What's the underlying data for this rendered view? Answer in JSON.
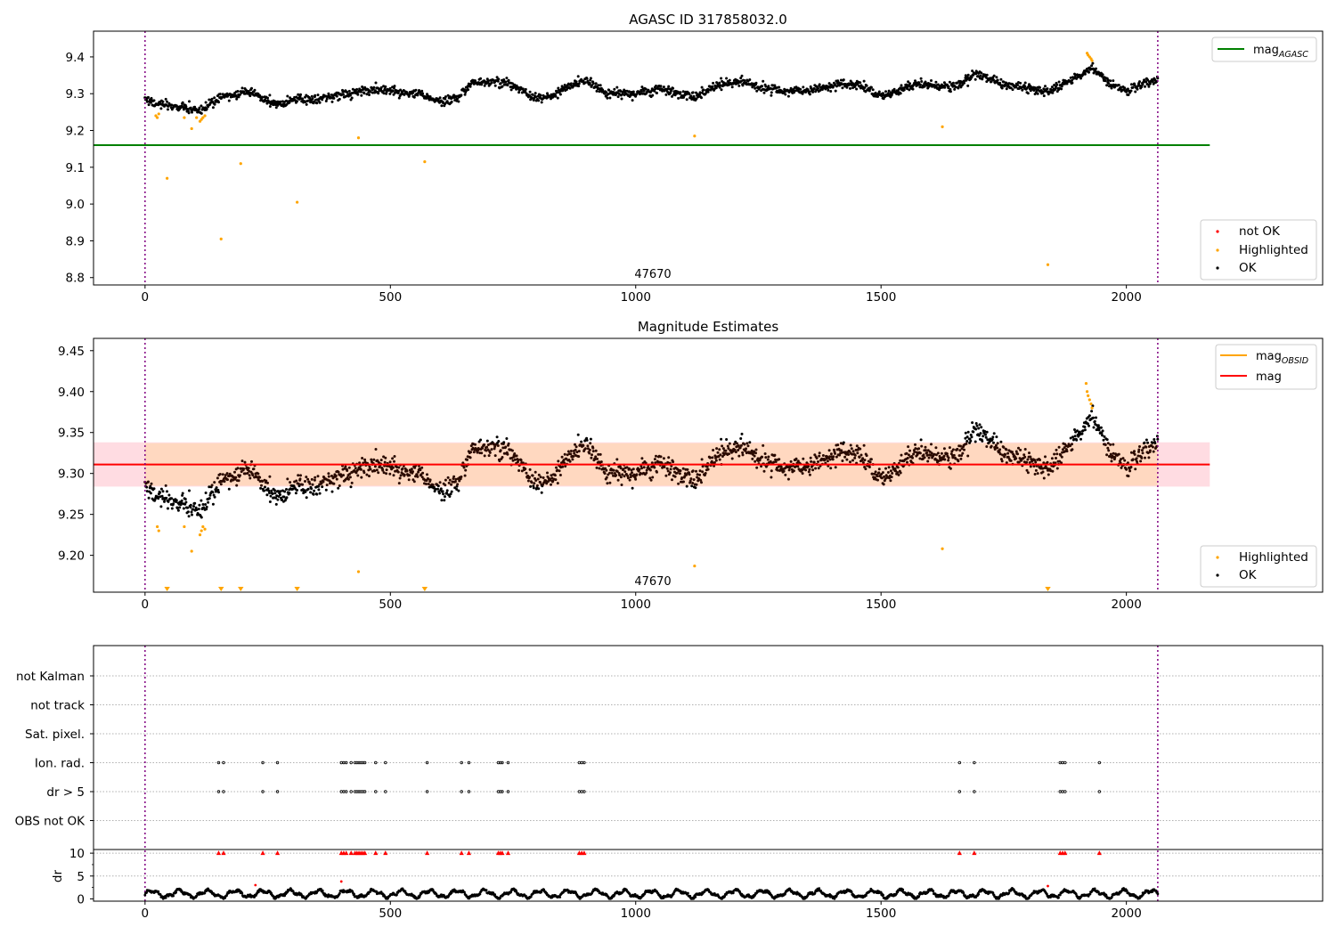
{
  "chart_data": [
    {
      "type": "scatter",
      "title": "AGASC ID 317858032.0",
      "xlim": [
        -105,
        2400
      ],
      "ylim": [
        8.78,
        9.47
      ],
      "x_ticks": [
        0,
        500,
        1000,
        1500,
        2000
      ],
      "y_ticks": [
        8.8,
        8.9,
        9.0,
        9.1,
        9.2,
        9.3,
        9.4
      ],
      "y_tick_labels": [
        "8.8",
        "8.9",
        "9.0",
        "9.1",
        "9.2",
        "9.3",
        "9.4"
      ],
      "obsid_annotation": {
        "text": "47670",
        "x": 1030,
        "y": 8.795
      },
      "vlines": [
        0,
        2064
      ],
      "hline": {
        "y": 9.16,
        "x_from": -105,
        "x_to": 2170,
        "color": "#008000"
      },
      "legend_upper": [
        {
          "label": "mag",
          "subscript": "AGASC",
          "color": "#008000",
          "kind": "line"
        }
      ],
      "legend_lower": [
        {
          "label": "not OK",
          "color": "#ff0000",
          "kind": "dot"
        },
        {
          "label": "Highlighted",
          "color": "#ffa500",
          "kind": "dot"
        },
        {
          "label": "OK",
          "color": "#000000",
          "kind": "dot"
        }
      ],
      "highlighted_points": [
        [
          22,
          9.24
        ],
        [
          25,
          9.235
        ],
        [
          28,
          9.245
        ],
        [
          45,
          9.07
        ],
        [
          80,
          9.235
        ],
        [
          95,
          9.205
        ],
        [
          105,
          9.235
        ],
        [
          112,
          9.225
        ],
        [
          115,
          9.23
        ],
        [
          118,
          9.235
        ],
        [
          122,
          9.24
        ],
        [
          155,
          8.905
        ],
        [
          195,
          9.11
        ],
        [
          310,
          9.005
        ],
        [
          435,
          9.18
        ],
        [
          570,
          9.115
        ],
        [
          1120,
          9.185
        ],
        [
          1625,
          9.21
        ],
        [
          1840,
          8.835
        ],
        [
          1920,
          9.41
        ],
        [
          1922,
          9.405
        ],
        [
          1925,
          9.4
        ],
        [
          1928,
          9.395
        ],
        [
          1930,
          9.39
        ]
      ]
    },
    {
      "type": "scatter",
      "title": "Magnitude Estimates",
      "xlim": [
        -105,
        2400
      ],
      "ylim": [
        9.155,
        9.465
      ],
      "x_ticks": [
        0,
        500,
        1000,
        1500,
        2000
      ],
      "y_ticks": [
        9.2,
        9.25,
        9.3,
        9.35,
        9.4,
        9.45
      ],
      "y_tick_labels": [
        "9.20",
        "9.25",
        "9.30",
        "9.35",
        "9.40",
        "9.45"
      ],
      "obsid_annotation": {
        "text": "47670",
        "x": 1030,
        "y": 9.163
      },
      "vlines": [
        0,
        2064
      ],
      "mag_line": {
        "y": 9.311,
        "color": "#ff0000"
      },
      "band_outer": {
        "y0": 9.284,
        "y1": 9.338,
        "color": "#ffc0cb"
      },
      "band_inner": {
        "y0": 9.285,
        "y1": 9.337,
        "x_from": 0,
        "x_to": 2064,
        "color": "#ffd8c0"
      },
      "legend_upper": [
        {
          "label": "mag",
          "subscript": "OBSID",
          "color": "#ffa500",
          "kind": "line"
        },
        {
          "label": "mag",
          "subscript": "",
          "color": "#ff0000",
          "kind": "line"
        }
      ],
      "legend_lower": [
        {
          "label": "Highlighted",
          "color": "#ffa500",
          "kind": "dot"
        },
        {
          "label": "OK",
          "color": "#000000",
          "kind": "dot"
        }
      ],
      "highlighted_points": [
        [
          25,
          9.235
        ],
        [
          28,
          9.23
        ],
        [
          80,
          9.235
        ],
        [
          95,
          9.205
        ],
        [
          112,
          9.225
        ],
        [
          115,
          9.23
        ],
        [
          118,
          9.235
        ],
        [
          122,
          9.232
        ],
        [
          435,
          9.18
        ],
        [
          1120,
          9.187
        ],
        [
          1625,
          9.208
        ],
        [
          1918,
          9.41
        ],
        [
          1920,
          9.4
        ],
        [
          1922,
          9.395
        ],
        [
          1925,
          9.39
        ],
        [
          1928,
          9.385
        ],
        [
          1930,
          9.38
        ]
      ],
      "clipped_markers_x": [
        45,
        155,
        195,
        310,
        570,
        1840
      ]
    },
    {
      "type": "scatter",
      "title": "",
      "xlim": [
        -105,
        2400
      ],
      "x_ticks": [
        0,
        500,
        1000,
        1500,
        2000
      ],
      "flag_categories": [
        "not Kalman",
        "not track",
        "Sat. pixel.",
        "Ion. rad.",
        "dr > 5",
        "OBS not OK"
      ],
      "flag_times": {
        "Ion. rad.": [
          150,
          160,
          240,
          270,
          400,
          405,
          410,
          420,
          428,
          432,
          436,
          440,
          444,
          448,
          470,
          490,
          575,
          645,
          660,
          720,
          724,
          728,
          740,
          885,
          890,
          895,
          1660,
          1690,
          1865,
          1870,
          1875,
          1945
        ],
        "dr > 5": [
          150,
          160,
          240,
          270,
          400,
          405,
          410,
          420,
          428,
          432,
          436,
          440,
          444,
          448,
          470,
          490,
          575,
          645,
          660,
          720,
          724,
          728,
          740,
          885,
          890,
          895,
          1660,
          1690,
          1865,
          1870,
          1875,
          1945
        ]
      },
      "vlines": [
        0,
        2064
      ],
      "dr_panel": {
        "ylabel": "dr",
        "ylim": [
          -0.5,
          10.8
        ],
        "y_ticks": [
          0,
          5,
          10
        ],
        "y_tick_labels": [
          "0",
          "5",
          "10"
        ],
        "clip_value": 10,
        "clipped_points_x": [
          150,
          160,
          240,
          270,
          400,
          405,
          410,
          420,
          428,
          432,
          436,
          440,
          444,
          448,
          470,
          490,
          575,
          645,
          660,
          720,
          724,
          728,
          740,
          885,
          890,
          895,
          1660,
          1690,
          1865,
          1870,
          1875,
          1945
        ],
        "red_points": [
          [
            225,
            3.0
          ],
          [
            400,
            3.8
          ],
          [
            1840,
            2.8
          ]
        ],
        "dr_mean": 1.1
      }
    }
  ],
  "light_curve": {
    "t_start": 0,
    "t_end": 2064,
    "n_points": 1900,
    "noise": 0.006,
    "seed": 7,
    "knots": [
      [
        0,
        9.29
      ],
      [
        10,
        9.28
      ],
      [
        40,
        9.268
      ],
      [
        80,
        9.262
      ],
      [
        115,
        9.252
      ],
      [
        130,
        9.272
      ],
      [
        160,
        9.292
      ],
      [
        215,
        9.308
      ],
      [
        235,
        9.29
      ],
      [
        270,
        9.272
      ],
      [
        310,
        9.285
      ],
      [
        345,
        9.285
      ],
      [
        380,
        9.292
      ],
      [
        430,
        9.305
      ],
      [
        480,
        9.312
      ],
      [
        520,
        9.302
      ],
      [
        560,
        9.3
      ],
      [
        600,
        9.278
      ],
      [
        640,
        9.29
      ],
      [
        665,
        9.33
      ],
      [
        740,
        9.33
      ],
      [
        790,
        9.29
      ],
      [
        830,
        9.293
      ],
      [
        860,
        9.318
      ],
      [
        900,
        9.335
      ],
      [
        940,
        9.302
      ],
      [
        1010,
        9.3
      ],
      [
        1050,
        9.312
      ],
      [
        1090,
        9.3
      ],
      [
        1120,
        9.29
      ],
      [
        1150,
        9.312
      ],
      [
        1210,
        9.335
      ],
      [
        1255,
        9.318
      ],
      [
        1300,
        9.305
      ],
      [
        1360,
        9.31
      ],
      [
        1420,
        9.328
      ],
      [
        1460,
        9.322
      ],
      [
        1500,
        9.293
      ],
      [
        1525,
        9.302
      ],
      [
        1570,
        9.33
      ],
      [
        1620,
        9.318
      ],
      [
        1650,
        9.32
      ],
      [
        1700,
        9.355
      ],
      [
        1740,
        9.33
      ],
      [
        1800,
        9.315
      ],
      [
        1840,
        9.305
      ],
      [
        1880,
        9.332
      ],
      [
        1930,
        9.37
      ],
      [
        1965,
        9.33
      ],
      [
        2000,
        9.305
      ],
      [
        2040,
        9.33
      ],
      [
        2064,
        9.335
      ]
    ]
  }
}
